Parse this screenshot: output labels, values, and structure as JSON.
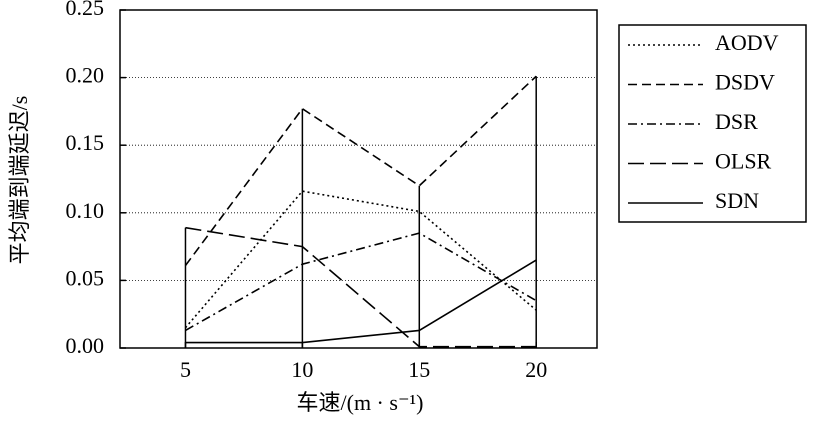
{
  "chart_data": {
    "type": "line",
    "xlabel": "车速/(m · s⁻¹)",
    "ylabel": "平均端到端延迟/s",
    "x": [
      5,
      10,
      15,
      20
    ],
    "xlim": [
      2.2,
      22.6
    ],
    "xticks": [
      5,
      10,
      15,
      20
    ],
    "ylim": [
      0,
      0.25
    ],
    "yticks": [
      {
        "value": 0,
        "label": "0.00"
      },
      {
        "value": 0.05,
        "label": "0.05"
      },
      {
        "value": 0.1,
        "label": "0.10"
      },
      {
        "value": 0.15,
        "label": "0.15"
      },
      {
        "value": 0.2,
        "label": "0.20"
      },
      {
        "value": 0.25,
        "label": "0.25"
      }
    ],
    "grid": true,
    "legend": "right",
    "series": [
      {
        "name": "AODV",
        "color": "#000000",
        "dash": "2,3",
        "values": [
          0.015,
          0.116,
          0.101,
          0.028
        ]
      },
      {
        "name": "DSDV",
        "color": "#000000",
        "dash": "9,5",
        "values": [
          0.061,
          0.177,
          0.12,
          0.201
        ]
      },
      {
        "name": "DSR",
        "color": "#000000",
        "dash": "9,4,2,4",
        "values": [
          0.013,
          0.062,
          0.085,
          0.035
        ]
      },
      {
        "name": "OLSR",
        "color": "#000000",
        "dash": "16,6",
        "values": [
          0.089,
          0.075,
          0.001,
          0.001
        ]
      },
      {
        "name": "SDN",
        "color": "#000000",
        "dash": "",
        "values": [
          0.004,
          0.004,
          0.013,
          0.065
        ]
      }
    ]
  }
}
